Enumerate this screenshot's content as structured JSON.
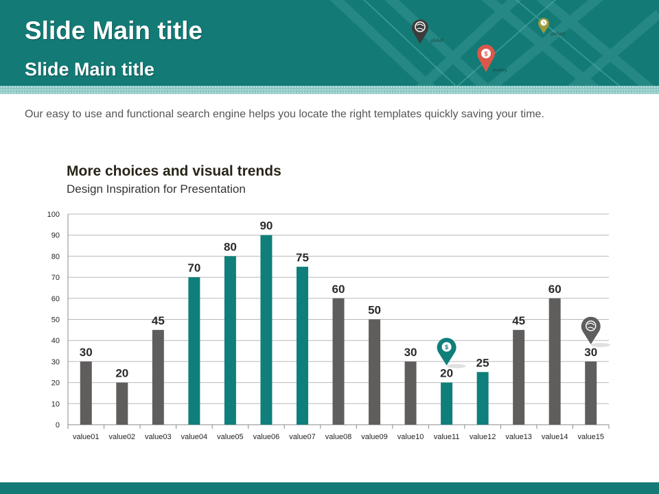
{
  "header": {
    "title": "Slide Main title",
    "subtitle": "Slide Main title",
    "pins": [
      {
        "label": "global",
        "icon": "globe-icon",
        "color": "#3c3c3c"
      },
      {
        "label": "money",
        "icon": "money-bag-icon",
        "color": "#d9584a"
      },
      {
        "label": "gadget",
        "icon": "clock-icon",
        "color": "#9c9a3a"
      }
    ]
  },
  "description": "Our easy to use and functional search engine helps you locate the right templates quickly  saving your time.",
  "chart_heading": "More choices and visual trends",
  "chart_subheading": "Design Inspiration for Presentation",
  "colors": {
    "teal": "#0f7f7b",
    "gray": "#605d5d",
    "header_bg": "#137a76",
    "strip": "#8cc8c5"
  },
  "chart_data": {
    "type": "bar",
    "title": "More choices and visual trends",
    "subtitle": "Design Inspiration for Presentation",
    "categories": [
      "value01",
      "value02",
      "value03",
      "value04",
      "value05",
      "value06",
      "value07",
      "value08",
      "value09",
      "value10",
      "value11",
      "value12",
      "value13",
      "value14",
      "value15"
    ],
    "values": [
      30,
      20,
      45,
      70,
      80,
      90,
      75,
      60,
      50,
      30,
      20,
      25,
      45,
      60,
      30
    ],
    "bar_colors": [
      "gray",
      "gray",
      "gray",
      "teal",
      "teal",
      "teal",
      "teal",
      "gray",
      "gray",
      "gray",
      "teal",
      "teal",
      "gray",
      "gray",
      "gray"
    ],
    "ylim": [
      0,
      100
    ],
    "yticks": [
      0,
      10,
      20,
      30,
      40,
      50,
      60,
      70,
      80,
      90,
      100
    ],
    "grid": true,
    "legend": "none",
    "xlabel": "",
    "ylabel": "",
    "markers": [
      {
        "category": "value11",
        "icon": "money-bag-icon",
        "color": "teal"
      },
      {
        "category": "value15",
        "icon": "globe-icon",
        "color": "gray"
      }
    ]
  }
}
